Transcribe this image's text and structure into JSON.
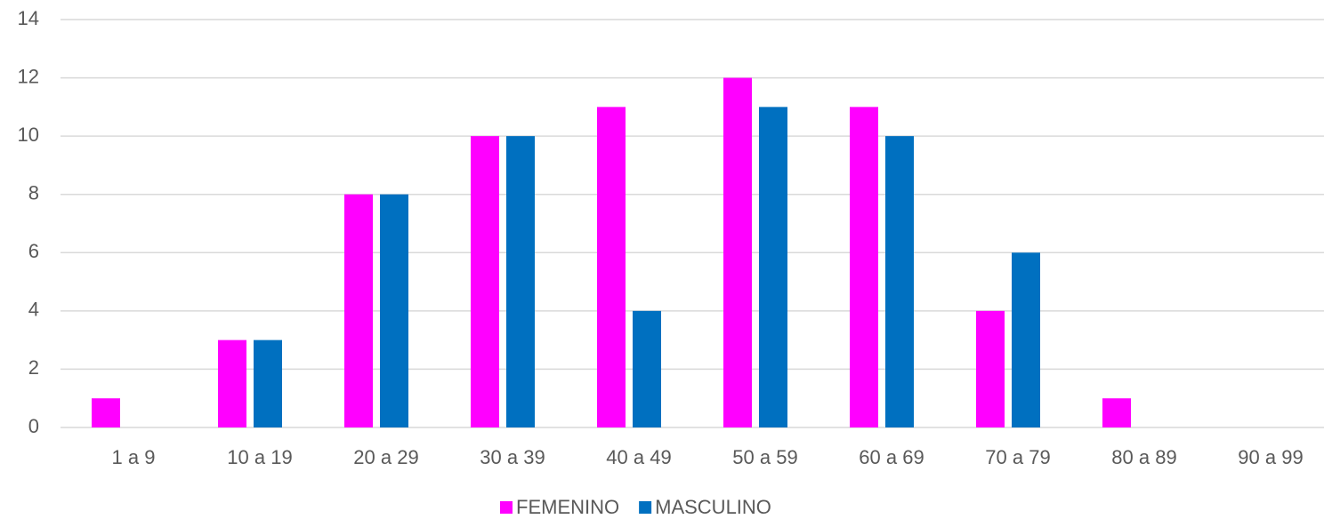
{
  "chart_data": {
    "type": "bar",
    "categories": [
      "1 a 9",
      "10 a 19",
      "20 a 29",
      "30 a 39",
      "40 a 49",
      "50 a 59",
      "60 a 69",
      "70 a 79",
      "80 a 89",
      "90 a 99"
    ],
    "series": [
      {
        "name": "FEMENINO",
        "color": "#ff00ff",
        "values": [
          1,
          3,
          8,
          10,
          11,
          12,
          11,
          4,
          1,
          0
        ]
      },
      {
        "name": "MASCULINO",
        "color": "#0070c0",
        "values": [
          0,
          3,
          8,
          10,
          4,
          11,
          10,
          6,
          0,
          0
        ]
      }
    ],
    "ylim": [
      0,
      14
    ],
    "yticks": [
      0,
      2,
      4,
      6,
      8,
      10,
      12,
      14
    ],
    "grid": true,
    "legend": "bottom"
  }
}
